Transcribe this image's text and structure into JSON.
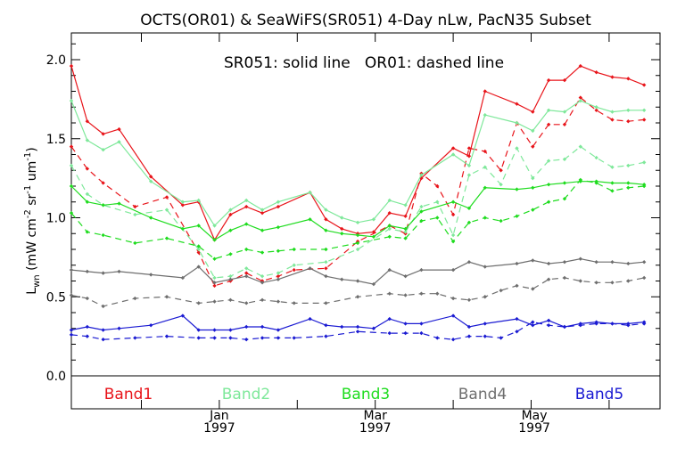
{
  "chart_data": {
    "type": "line",
    "title": "OCTS(OR01) & SeaWiFS(SR051) 4-Day nLw, PacN35 Subset",
    "annotation": "SR051: solid line   OR01: dashed line",
    "ylabel": {
      "main": "L",
      "sub": "wn",
      "units": "(mW cm",
      "exp1": "-2",
      "mid": " sr",
      "exp2": "-1",
      "mid2": " um",
      "exp3": "-1",
      "end": ")"
    },
    "ylim": [
      -0.2,
      2.2
    ],
    "xlim": [
      0,
      37
    ],
    "yticks": [
      "0.0",
      "0.5",
      "1.0",
      "1.5",
      "2.0"
    ],
    "xticks": [
      {
        "label": "Jan",
        "year": "1997",
        "x": 9.3
      },
      {
        "label": "Mar",
        "year": "1997",
        "x": 19.1
      },
      {
        "label": "May",
        "year": "1997",
        "x": 29.1
      }
    ],
    "grid": false,
    "legend": [
      {
        "name": "Band1",
        "color": "#e8141a"
      },
      {
        "name": "Band2",
        "color": "#7ee89a"
      },
      {
        "name": "Band3",
        "color": "#1edc1e"
      },
      {
        "name": "Band4",
        "color": "#6e6e6e"
      },
      {
        "name": "Band5",
        "color": "#1a1ad2"
      }
    ],
    "series": [
      {
        "name": "Band1",
        "style": "solid",
        "color": "#e8141a",
        "x": [
          0,
          1,
          2,
          3,
          5,
          7,
          8,
          9,
          10,
          11,
          12,
          13,
          15,
          16,
          17,
          18,
          19,
          20,
          21,
          22,
          24,
          25,
          26,
          28,
          29,
          30,
          31,
          32,
          33,
          34,
          35,
          36
        ],
        "y": [
          1.96,
          1.61,
          1.53,
          1.56,
          1.26,
          1.08,
          1.1,
          0.86,
          1.02,
          1.07,
          1.03,
          1.07,
          1.16,
          0.99,
          0.93,
          0.9,
          0.91,
          1.03,
          1.01,
          1.25,
          1.44,
          1.39,
          1.8,
          1.72,
          1.67,
          1.87,
          1.87,
          1.96,
          1.92,
          1.89,
          1.88,
          1.84
        ]
      },
      {
        "name": "Band1",
        "style": "dashed",
        "color": "#e8141a",
        "x": [
          0,
          1,
          2,
          4,
          6,
          8,
          9,
          10,
          11,
          12,
          13,
          14,
          16,
          18,
          20,
          21,
          22,
          23,
          24,
          25,
          26,
          27,
          28,
          29,
          30,
          31,
          32,
          33,
          34,
          35,
          36
        ],
        "y": [
          1.45,
          1.31,
          1.22,
          1.07,
          1.13,
          0.78,
          0.57,
          0.6,
          0.65,
          0.6,
          0.63,
          0.67,
          0.68,
          0.85,
          0.95,
          0.9,
          1.28,
          1.2,
          1.02,
          1.44,
          1.42,
          1.3,
          1.6,
          1.45,
          1.59,
          1.59,
          1.76,
          1.68,
          1.62,
          1.61,
          1.62
        ]
      },
      {
        "name": "Band2",
        "style": "solid",
        "color": "#7ee89a",
        "x": [
          0,
          1,
          2,
          3,
          5,
          7,
          8,
          9,
          10,
          11,
          12,
          13,
          15,
          16,
          17,
          18,
          19,
          20,
          21,
          22,
          24,
          25,
          26,
          28,
          29,
          30,
          31,
          32,
          33,
          34,
          35,
          36
        ],
        "y": [
          1.74,
          1.49,
          1.43,
          1.48,
          1.23,
          1.1,
          1.11,
          0.95,
          1.05,
          1.11,
          1.05,
          1.1,
          1.16,
          1.05,
          1.0,
          0.97,
          0.99,
          1.11,
          1.08,
          1.27,
          1.4,
          1.33,
          1.65,
          1.6,
          1.55,
          1.68,
          1.67,
          1.74,
          1.7,
          1.67,
          1.68,
          1.68
        ]
      },
      {
        "name": "Band2",
        "style": "dashed",
        "color": "#7ee89a",
        "x": [
          0,
          1,
          2,
          4,
          6,
          8,
          9,
          10,
          11,
          12,
          13,
          14,
          16,
          18,
          20,
          21,
          22,
          23,
          24,
          25,
          26,
          27,
          28,
          29,
          30,
          31,
          32,
          33,
          34,
          35,
          36
        ],
        "y": [
          1.33,
          1.15,
          1.08,
          1.02,
          1.05,
          0.8,
          0.62,
          0.63,
          0.68,
          0.63,
          0.65,
          0.7,
          0.72,
          0.8,
          0.93,
          0.91,
          1.07,
          1.1,
          0.89,
          1.27,
          1.32,
          1.21,
          1.44,
          1.25,
          1.36,
          1.37,
          1.45,
          1.38,
          1.32,
          1.33,
          1.35
        ]
      },
      {
        "name": "Band3",
        "style": "solid",
        "color": "#1edc1e",
        "x": [
          0,
          1,
          2,
          3,
          5,
          7,
          8,
          9,
          10,
          11,
          12,
          13,
          15,
          16,
          17,
          18,
          19,
          20,
          21,
          22,
          24,
          25,
          26,
          28,
          29,
          30,
          31,
          32,
          33,
          34,
          35,
          36
        ],
        "y": [
          1.2,
          1.1,
          1.08,
          1.09,
          1.0,
          0.93,
          0.95,
          0.86,
          0.92,
          0.96,
          0.92,
          0.94,
          0.99,
          0.92,
          0.9,
          0.89,
          0.88,
          0.95,
          0.93,
          1.04,
          1.1,
          1.06,
          1.19,
          1.18,
          1.19,
          1.21,
          1.22,
          1.23,
          1.23,
          1.22,
          1.22,
          1.21
        ]
      },
      {
        "name": "Band3",
        "style": "dashed",
        "color": "#1edc1e",
        "x": [
          0,
          1,
          2,
          4,
          6,
          8,
          9,
          10,
          11,
          12,
          13,
          14,
          16,
          18,
          20,
          21,
          22,
          23,
          24,
          25,
          26,
          27,
          28,
          29,
          30,
          31,
          32,
          33,
          34,
          35,
          36
        ],
        "y": [
          1.03,
          0.91,
          0.89,
          0.84,
          0.87,
          0.82,
          0.74,
          0.77,
          0.8,
          0.78,
          0.79,
          0.8,
          0.8,
          0.84,
          0.88,
          0.87,
          0.98,
          1.0,
          0.85,
          0.97,
          1.0,
          0.98,
          1.01,
          1.05,
          1.1,
          1.12,
          1.24,
          1.22,
          1.17,
          1.19,
          1.2
        ]
      },
      {
        "name": "Band4",
        "style": "solid",
        "color": "#6e6e6e",
        "x": [
          0,
          1,
          2,
          3,
          5,
          7,
          8,
          9,
          10,
          11,
          12,
          13,
          15,
          16,
          17,
          18,
          19,
          20,
          21,
          22,
          24,
          25,
          26,
          28,
          29,
          30,
          31,
          32,
          33,
          34,
          35,
          36
        ],
        "y": [
          0.67,
          0.66,
          0.65,
          0.66,
          0.64,
          0.62,
          0.69,
          0.59,
          0.61,
          0.63,
          0.59,
          0.61,
          0.68,
          0.63,
          0.61,
          0.6,
          0.58,
          0.67,
          0.63,
          0.67,
          0.67,
          0.72,
          0.69,
          0.71,
          0.73,
          0.71,
          0.72,
          0.74,
          0.72,
          0.72,
          0.71,
          0.72
        ]
      },
      {
        "name": "Band4",
        "style": "dashed",
        "color": "#6e6e6e",
        "x": [
          0,
          1,
          2,
          4,
          6,
          8,
          9,
          10,
          11,
          12,
          13,
          14,
          16,
          18,
          20,
          21,
          22,
          23,
          24,
          25,
          26,
          27,
          28,
          29,
          30,
          31,
          32,
          33,
          34,
          35,
          36
        ],
        "y": [
          0.51,
          0.49,
          0.44,
          0.49,
          0.5,
          0.46,
          0.47,
          0.48,
          0.46,
          0.48,
          0.47,
          0.46,
          0.46,
          0.5,
          0.52,
          0.51,
          0.52,
          0.52,
          0.49,
          0.48,
          0.5,
          0.54,
          0.57,
          0.55,
          0.61,
          0.62,
          0.6,
          0.59,
          0.59,
          0.6,
          0.62
        ]
      },
      {
        "name": "Band5",
        "style": "solid",
        "color": "#1a1ad2",
        "x": [
          0,
          1,
          2,
          3,
          5,
          7,
          8,
          9,
          10,
          11,
          12,
          13,
          15,
          16,
          17,
          18,
          19,
          20,
          21,
          22,
          24,
          25,
          26,
          28,
          29,
          30,
          31,
          32,
          33,
          34,
          35,
          36
        ],
        "y": [
          0.29,
          0.31,
          0.29,
          0.3,
          0.32,
          0.38,
          0.29,
          0.29,
          0.29,
          0.31,
          0.31,
          0.29,
          0.36,
          0.32,
          0.31,
          0.31,
          0.3,
          0.36,
          0.33,
          0.33,
          0.38,
          0.31,
          0.33,
          0.36,
          0.32,
          0.35,
          0.31,
          0.33,
          0.34,
          0.33,
          0.33,
          0.34
        ]
      },
      {
        "name": "Band5",
        "style": "dashed",
        "color": "#1a1ad2",
        "x": [
          0,
          1,
          2,
          4,
          6,
          8,
          9,
          10,
          11,
          12,
          13,
          14,
          16,
          18,
          20,
          21,
          22,
          23,
          24,
          25,
          26,
          27,
          28,
          29,
          30,
          31,
          32,
          33,
          34,
          35,
          36
        ],
        "y": [
          0.26,
          0.25,
          0.23,
          0.24,
          0.25,
          0.24,
          0.24,
          0.24,
          0.23,
          0.24,
          0.24,
          0.24,
          0.25,
          0.28,
          0.27,
          0.27,
          0.27,
          0.24,
          0.23,
          0.25,
          0.25,
          0.24,
          0.28,
          0.34,
          0.32,
          0.31,
          0.32,
          0.33,
          0.33,
          0.32,
          0.33
        ]
      }
    ]
  }
}
